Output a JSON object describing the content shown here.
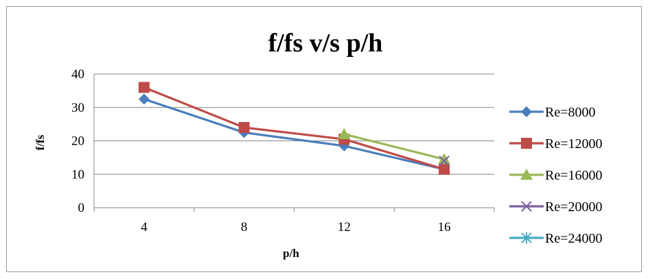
{
  "chart_data": {
    "type": "line",
    "title": "f/fs v/s p/h",
    "xlabel": "p/h",
    "ylabel": "f/fs",
    "categories": [
      "4",
      "8",
      "12",
      "16"
    ],
    "ylim": [
      0,
      40
    ],
    "yticks": [
      "0",
      "10",
      "20",
      "30",
      "40"
    ],
    "grid": true,
    "legend_position": "right",
    "series": [
      {
        "name": "Re=8000",
        "color": "#4a7ebb",
        "marker": "diamond",
        "values": [
          32.5,
          22.5,
          18.5,
          11.5
        ]
      },
      {
        "name": "Re=12000",
        "color": "#be4b48",
        "marker": "square",
        "values": [
          36.0,
          24.0,
          20.5,
          11.5
        ]
      },
      {
        "name": "Re=16000",
        "color": "#98b954",
        "marker": "triangle",
        "values": [
          null,
          null,
          22.0,
          14.5
        ]
      },
      {
        "name": "Re=20000",
        "color": "#7d60a0",
        "marker": "x",
        "values": [
          null,
          null,
          null,
          14.0
        ]
      },
      {
        "name": "Re=24000",
        "color": "#46aac5",
        "marker": "star",
        "values": [
          null,
          null,
          null,
          null
        ]
      }
    ]
  }
}
